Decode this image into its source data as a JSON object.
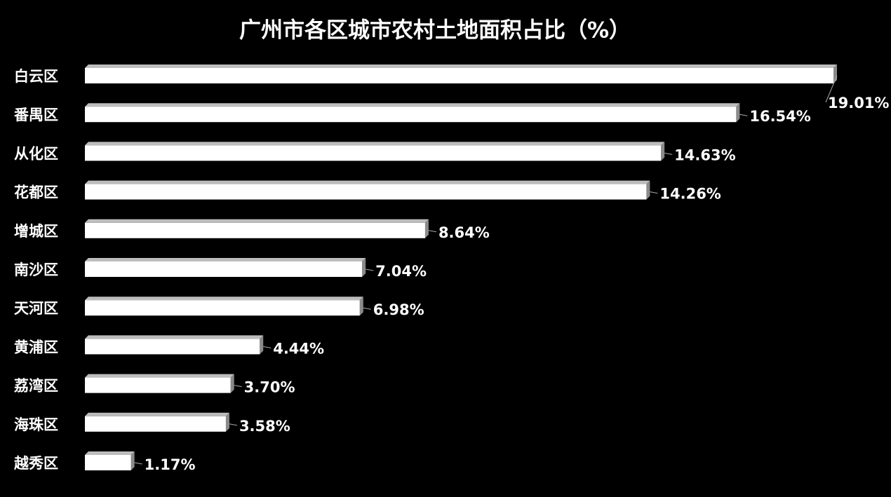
{
  "chart_data": {
    "type": "bar",
    "orientation": "horizontal",
    "title": "广州市各区城市农村土地面积占比（%）",
    "categories": [
      "白云区",
      "番禺区",
      "从化区",
      "花都区",
      "增城区",
      "南沙区",
      "天河区",
      "黄浦区",
      "荔湾区",
      "海珠区",
      "越秀区"
    ],
    "values": [
      19.01,
      16.54,
      14.63,
      14.26,
      8.64,
      7.04,
      6.98,
      4.44,
      3.7,
      3.58,
      1.17
    ],
    "value_labels": [
      "19.01%",
      "16.54%",
      "14.63%",
      "14.26%",
      "8.64%",
      "7.04%",
      "6.98%",
      "4.44%",
      "3.70%",
      "3.58%",
      "1.17%"
    ],
    "color": "#ffffff"
  }
}
